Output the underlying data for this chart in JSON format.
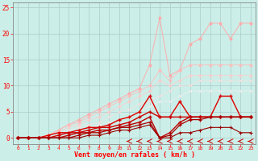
{
  "xlabel": "Vent moyen/en rafales ( km/h )",
  "bg_color": "#cceee8",
  "grid_color": "#aacccc",
  "xlim": [
    -0.5,
    23.5
  ],
  "ylim": [
    -1.2,
    26
  ],
  "xticks": [
    0,
    1,
    2,
    3,
    4,
    5,
    6,
    7,
    8,
    9,
    10,
    11,
    12,
    13,
    14,
    15,
    16,
    17,
    18,
    19,
    20,
    21,
    22,
    23
  ],
  "yticks": [
    0,
    5,
    10,
    15,
    20,
    25
  ],
  "lines_light": [
    {
      "x": [
        0,
        1,
        2,
        3,
        4,
        5,
        6,
        7,
        8,
        9,
        10,
        11,
        12,
        13,
        14,
        15,
        16,
        17,
        18,
        19,
        20,
        21,
        22,
        23
      ],
      "y": [
        0,
        0,
        0,
        0.5,
        1.5,
        2.5,
        3.5,
        4.5,
        5.5,
        6.5,
        7.5,
        8.5,
        9.5,
        14,
        23,
        12,
        13,
        18,
        19,
        22,
        22,
        19,
        22,
        22
      ],
      "color": "#ffaaaa",
      "alpha": 0.85,
      "lw": 0.8,
      "marker": "o",
      "ms": 2.0
    },
    {
      "x": [
        0,
        1,
        2,
        3,
        4,
        5,
        6,
        7,
        8,
        9,
        10,
        11,
        12,
        13,
        14,
        15,
        16,
        17,
        18,
        19,
        20,
        21,
        22,
        23
      ],
      "y": [
        0,
        0,
        0,
        0.5,
        1.5,
        2.5,
        3,
        4,
        5,
        6,
        7,
        8,
        9,
        10,
        13,
        11,
        13,
        14,
        14,
        14,
        14,
        14,
        14,
        14
      ],
      "color": "#ffbbbb",
      "alpha": 0.75,
      "lw": 0.8,
      "marker": "o",
      "ms": 2.0
    },
    {
      "x": [
        0,
        1,
        2,
        3,
        4,
        5,
        6,
        7,
        8,
        9,
        10,
        11,
        12,
        13,
        14,
        15,
        16,
        17,
        18,
        19,
        20,
        21,
        22,
        23
      ],
      "y": [
        0,
        0,
        0,
        0.5,
        1,
        2,
        2.5,
        3.5,
        4,
        5,
        6,
        7,
        8,
        9,
        11,
        10,
        11,
        12,
        12,
        12,
        12,
        12,
        12,
        12
      ],
      "color": "#ffcccc",
      "alpha": 0.65,
      "lw": 0.8,
      "marker": "o",
      "ms": 2.0
    },
    {
      "x": [
        0,
        1,
        2,
        3,
        4,
        5,
        6,
        7,
        8,
        9,
        10,
        11,
        12,
        13,
        14,
        15,
        16,
        17,
        18,
        19,
        20,
        21,
        22,
        23
      ],
      "y": [
        0,
        0,
        0,
        0,
        0.5,
        1.5,
        2,
        2.5,
        3,
        4,
        5,
        5.5,
        6.5,
        7,
        8,
        9,
        10,
        10,
        11,
        11,
        11,
        11,
        11,
        11
      ],
      "color": "#ffdddd",
      "alpha": 0.55,
      "lw": 0.8,
      "marker": "o",
      "ms": 1.5
    },
    {
      "x": [
        0,
        1,
        2,
        3,
        4,
        5,
        6,
        7,
        8,
        9,
        10,
        11,
        12,
        13,
        14,
        15,
        16,
        17,
        18,
        19,
        20,
        21,
        22,
        23
      ],
      "y": [
        0,
        0,
        0,
        0,
        0.5,
        1,
        1.5,
        2,
        2.5,
        3,
        3.5,
        4,
        5,
        6,
        7,
        7,
        8,
        9,
        9,
        9,
        9,
        9,
        9,
        9
      ],
      "color": "#ffeeee",
      "alpha": 0.45,
      "lw": 0.7,
      "marker": "o",
      "ms": 1.5
    }
  ],
  "lines_dark": [
    {
      "x": [
        0,
        1,
        2,
        3,
        4,
        5,
        6,
        7,
        8,
        9,
        10,
        11,
        12,
        13,
        14,
        15,
        16,
        17,
        18,
        19,
        20,
        21,
        22,
        23
      ],
      "y": [
        0,
        0,
        0,
        0.5,
        1,
        1,
        1.5,
        2,
        2,
        2.5,
        3.5,
        4,
        5,
        8,
        4,
        4,
        7,
        4,
        4,
        4,
        8,
        8,
        4,
        4
      ],
      "color": "#dd0000",
      "lw": 1.0,
      "marker": "+",
      "ms": 3.5,
      "mew": 1.0
    },
    {
      "x": [
        0,
        1,
        2,
        3,
        4,
        5,
        6,
        7,
        8,
        9,
        10,
        11,
        12,
        13,
        14,
        15,
        16,
        17,
        18,
        19,
        20,
        21,
        22,
        23
      ],
      "y": [
        0,
        0,
        0,
        0,
        0.5,
        1,
        1,
        1.5,
        2,
        2,
        2.5,
        3,
        4,
        5,
        4,
        4,
        4,
        4,
        4,
        4,
        4,
        4,
        4,
        4
      ],
      "color": "#cc0000",
      "lw": 1.0,
      "marker": "+",
      "ms": 3.5,
      "mew": 1.0
    },
    {
      "x": [
        0,
        1,
        2,
        3,
        4,
        5,
        6,
        7,
        8,
        9,
        10,
        11,
        12,
        13,
        14,
        15,
        16,
        17,
        18,
        19,
        20,
        21,
        22,
        23
      ],
      "y": [
        0,
        0,
        0,
        0,
        0,
        0.5,
        1,
        1,
        1.5,
        1.5,
        2,
        2.5,
        3,
        4,
        0,
        1,
        3,
        4,
        4,
        4,
        4,
        4,
        4,
        4
      ],
      "color": "#bb0000",
      "lw": 1.0,
      "marker": "+",
      "ms": 3.5,
      "mew": 1.0
    },
    {
      "x": [
        0,
        1,
        2,
        3,
        4,
        5,
        6,
        7,
        8,
        9,
        10,
        11,
        12,
        13,
        14,
        15,
        16,
        17,
        18,
        19,
        20,
        21,
        22,
        23
      ],
      "y": [
        0,
        0,
        0,
        0,
        0,
        0,
        0.5,
        1,
        1,
        1.5,
        2,
        2,
        2.5,
        3,
        0,
        0.5,
        2.5,
        3.5,
        3.5,
        4,
        4,
        4,
        4,
        4
      ],
      "color": "#aa0000",
      "lw": 0.9,
      "marker": "+",
      "ms": 3.0,
      "mew": 0.9
    },
    {
      "x": [
        0,
        1,
        2,
        3,
        4,
        5,
        6,
        7,
        8,
        9,
        10,
        11,
        12,
        13,
        14,
        15,
        16,
        17,
        18,
        19,
        20,
        21,
        22,
        23
      ],
      "y": [
        0,
        0,
        0,
        0,
        0,
        0,
        0,
        0.5,
        0.5,
        1,
        1.5,
        1.5,
        2,
        2.5,
        0,
        0,
        1,
        1,
        1.5,
        2,
        2,
        2,
        1,
        1
      ],
      "color": "#990000",
      "lw": 0.8,
      "marker": "+",
      "ms": 2.5,
      "mew": 0.8
    }
  ],
  "arrows_x": [
    11,
    12,
    13,
    14,
    15,
    16,
    17,
    18,
    19,
    20,
    21,
    22,
    23
  ]
}
